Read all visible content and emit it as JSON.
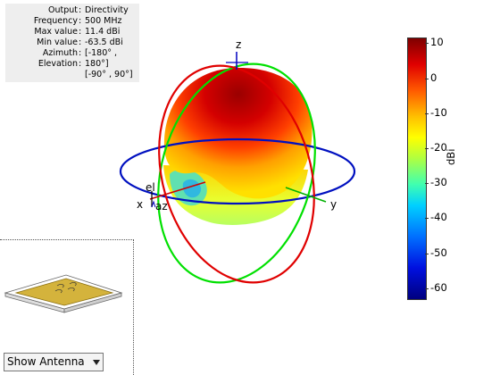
{
  "info": {
    "rows": [
      {
        "key": "Output",
        "value": "Directivity"
      },
      {
        "key": "Frequency",
        "value": "500 MHz"
      },
      {
        "key": "Max value",
        "value": "11.4 dBi"
      },
      {
        "key": "Min value",
        "value": "-63.5 dBi"
      },
      {
        "key": "Azimuth",
        "value": "[-180° ,"
      },
      {
        "key": "Elevation",
        "value": "180°]"
      },
      {
        "key": "",
        "value": "[-90° , 90°]"
      }
    ],
    "separator": ":"
  },
  "axes": {
    "x": "x",
    "y": "y",
    "z": "z",
    "el": "el",
    "az": "az"
  },
  "colorbar": {
    "unit": "dBi",
    "ticks": [
      "10",
      "0",
      "-10",
      "-20",
      "-30",
      "-40",
      "-50",
      "-60"
    ],
    "range": [
      -63.5,
      11.4
    ]
  },
  "control": {
    "selected": "Show Antenna"
  },
  "icons": [
    "dropdown-arrow-icon",
    "antenna-patch-icon"
  ]
}
